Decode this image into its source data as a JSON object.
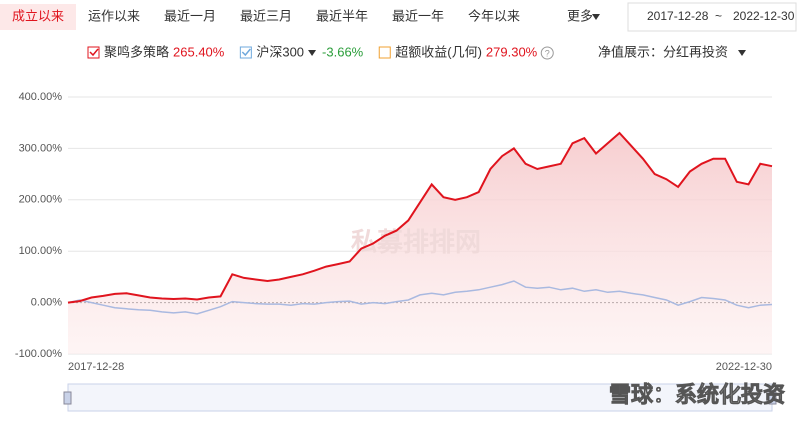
{
  "tabs": [
    "成立以来",
    "运作以来",
    "最近一月",
    "最近三月",
    "最近半年",
    "最近一年",
    "今年以来",
    "更多"
  ],
  "date_range": {
    "start": "2017-12-28",
    "separator": "~",
    "end": "2022-12-30"
  },
  "display_mode": "净值展示：分红再投资",
  "watermarks": [
    "私募排排网",
    "雪球：系统化投资"
  ],
  "chart_data": {
    "type": "line",
    "legend": [
      {
        "name": "聚鸣多策略",
        "color": "#e0141e",
        "checked": true,
        "total": 265.4,
        "total_label": "265.40%"
      },
      {
        "name": "沪深300",
        "color": "#6fa8dc",
        "checked": true,
        "total": -3.66,
        "total_label": "-3.66%"
      },
      {
        "name": "超额收益(几何)",
        "color": "#f0a030",
        "checked": false,
        "total": 279.3,
        "total_label": "279.30%"
      }
    ],
    "categories": [
      "2017-12-28",
      null,
      null,
      null,
      null,
      null,
      null,
      null,
      null,
      null,
      null,
      null,
      null,
      null,
      null,
      null,
      null,
      null,
      null,
      null,
      null,
      null,
      null,
      null,
      null,
      null,
      null,
      null,
      null,
      null,
      null,
      null,
      null,
      null,
      null,
      null,
      null,
      null,
      null,
      null,
      null,
      null,
      null,
      null,
      null,
      null,
      null,
      null,
      null,
      null,
      null,
      null,
      null,
      null,
      null,
      null,
      null,
      null,
      null,
      null,
      "2022-12-30"
    ],
    "series": [
      {
        "name": "聚鸣多策略",
        "color": "#e0141e",
        "area": true,
        "values": [
          0,
          3,
          10,
          13,
          17,
          18,
          14,
          10,
          8,
          7,
          8,
          6,
          10,
          12,
          55,
          48,
          45,
          42,
          45,
          50,
          55,
          62,
          70,
          75,
          80,
          105,
          115,
          130,
          140,
          160,
          195,
          230,
          205,
          200,
          205,
          215,
          260,
          285,
          300,
          270,
          260,
          265,
          270,
          310,
          320,
          290,
          310,
          330,
          305,
          280,
          250,
          240,
          225,
          255,
          270,
          280,
          280,
          235,
          230,
          270,
          265.4
        ]
      },
      {
        "name": "沪深300",
        "color": "#a9b9e0",
        "area": false,
        "values": [
          0,
          5,
          0,
          -5,
          -10,
          -12,
          -14,
          -15,
          -18,
          -20,
          -18,
          -22,
          -15,
          -8,
          2,
          0,
          -2,
          -3,
          -3,
          -5,
          -2,
          -3,
          0,
          2,
          3,
          -3,
          0,
          -2,
          2,
          5,
          15,
          18,
          15,
          20,
          22,
          25,
          30,
          35,
          42,
          30,
          28,
          30,
          25,
          28,
          22,
          25,
          20,
          22,
          18,
          15,
          10,
          5,
          -5,
          2,
          10,
          8,
          5,
          -5,
          -10,
          -5,
          -3.66
        ]
      }
    ],
    "ylim": [
      -100,
      400
    ],
    "yticks": [
      {
        "value": -100,
        "label": "-100.00%"
      },
      {
        "value": 0,
        "label": "0.00%"
      },
      {
        "value": 100,
        "label": "100.00%"
      },
      {
        "value": 200,
        "label": "200.00%"
      },
      {
        "value": 300,
        "label": "300.00%"
      },
      {
        "value": 400,
        "label": "400.00%"
      }
    ],
    "grid": true
  }
}
